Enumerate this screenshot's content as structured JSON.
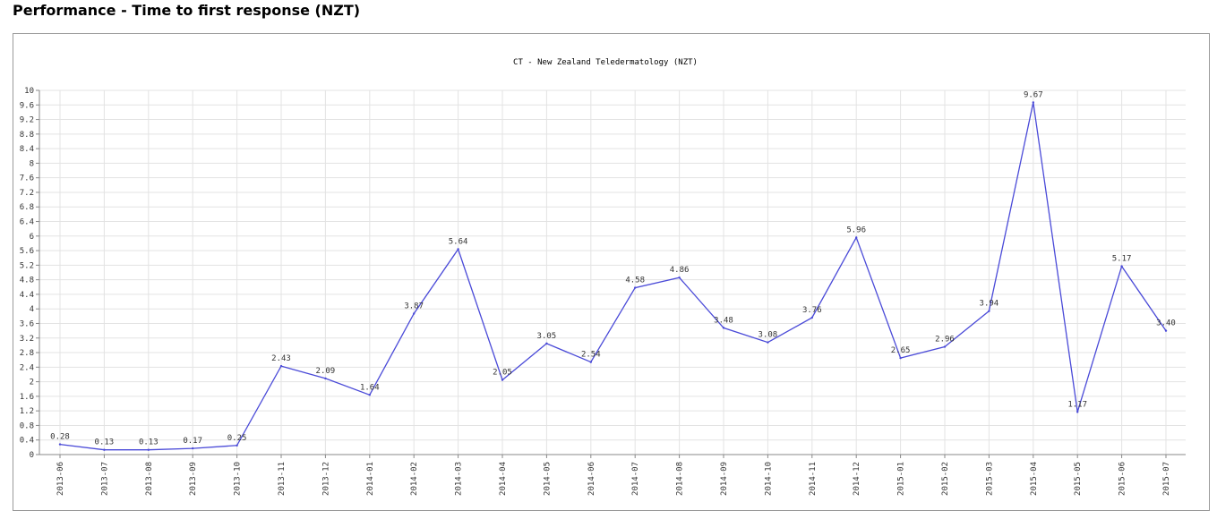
{
  "page": {
    "title": "Performance - Time to first response (NZT)"
  },
  "chart_data": {
    "type": "line",
    "title": "CT - New Zealand Teledermatology (NZT)",
    "xlabel": "",
    "ylabel": "",
    "ylim": [
      0,
      10
    ],
    "yticks": [
      "0",
      "0.4",
      "0.8",
      "1.2",
      "1.6",
      "2",
      "2.4",
      "2.8",
      "3.2",
      "3.6",
      "4",
      "4.4",
      "4.8",
      "5.2",
      "5.6",
      "6",
      "6.4",
      "6.8",
      "7.2",
      "7.6",
      "8",
      "8.4",
      "8.8",
      "9.2",
      "9.6",
      "10"
    ],
    "grid": true,
    "legend": "none",
    "line_color": "#4a4ad8",
    "categories": [
      "2013-06",
      "2013-07",
      "2013-08",
      "2013-09",
      "2013-10",
      "2013-11",
      "2013-12",
      "2014-01",
      "2014-02",
      "2014-03",
      "2014-04",
      "2014-05",
      "2014-06",
      "2014-07",
      "2014-08",
      "2014-09",
      "2014-10",
      "2014-11",
      "2014-12",
      "2015-01",
      "2015-02",
      "2015-03",
      "2015-04",
      "2015-05",
      "2015-06",
      "2015-07"
    ],
    "values": [
      0.28,
      0.13,
      0.13,
      0.17,
      0.25,
      2.43,
      2.09,
      1.64,
      3.87,
      5.64,
      2.05,
      3.05,
      2.54,
      4.58,
      4.86,
      3.48,
      3.08,
      3.76,
      5.96,
      2.65,
      2.96,
      3.94,
      9.67,
      1.17,
      5.17,
      3.4
    ],
    "data_labels": [
      "0.28",
      "0.13",
      "0.13",
      "0.17",
      "0.25",
      "2.43",
      "2.09",
      "1.64",
      "3.87",
      "5.64",
      "2.05",
      "3.05",
      "2.54",
      "4.58",
      "4.86",
      "3.48",
      "3.08",
      "3.76",
      "5.96",
      "2.65",
      "2.96",
      "3.94",
      "9.67",
      "1.17",
      "5.17",
      "3.40"
    ]
  }
}
